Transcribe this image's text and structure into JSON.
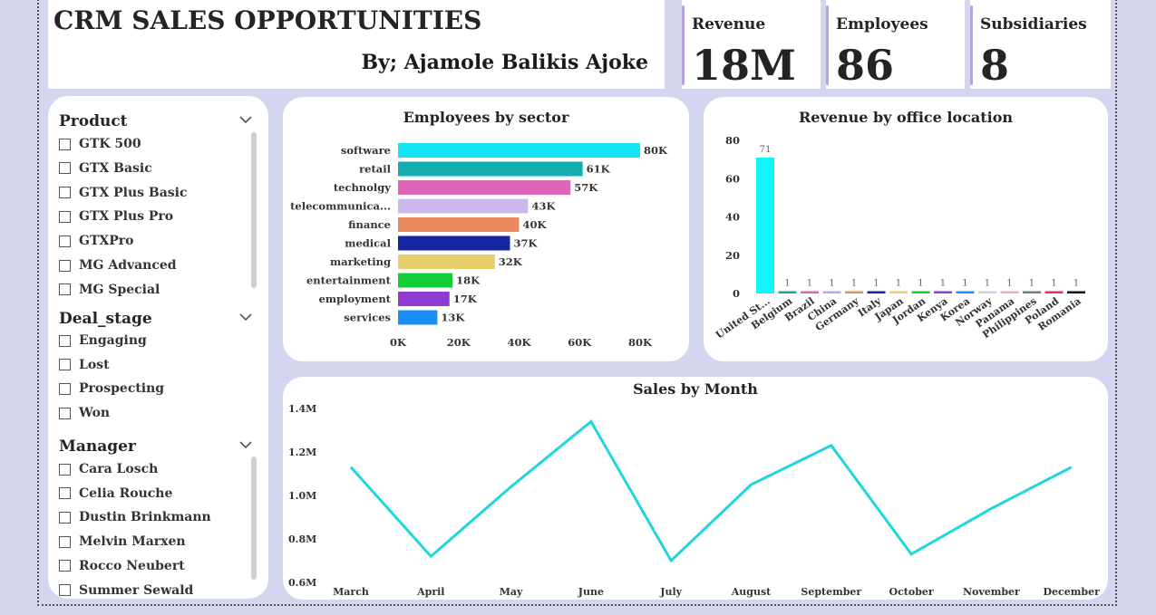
{
  "header": {
    "title": "CRM SALES OPPORTUNITIES",
    "author": "By; Ajamole Balikis Ajoke"
  },
  "kpis": [
    {
      "label": "Revenue",
      "value": "18M"
    },
    {
      "label": "Employees",
      "value": "86"
    },
    {
      "label": "Subsidiaries",
      "value": "8"
    }
  ],
  "slicers": {
    "product": {
      "title": "Product",
      "items": [
        "GTK 500",
        "GTX Basic",
        "GTX Plus Basic",
        "GTX Plus Pro",
        "GTXPro",
        "MG Advanced",
        "MG Special"
      ]
    },
    "deal_stage": {
      "title": "Deal_stage",
      "items": [
        "Engaging",
        "Lost",
        "Prospecting",
        "Won"
      ]
    },
    "manager": {
      "title": "Manager",
      "items": [
        "Cara Losch",
        "Celia Rouche",
        "Dustin Brinkmann",
        "Melvin Marxen",
        "Rocco Neubert",
        "Summer Sewald"
      ]
    }
  },
  "chart_data": [
    {
      "type": "bar",
      "orientation": "horizontal",
      "title": "Employees by sector",
      "categories": [
        "software",
        "retail",
        "technolgy",
        "telecommunica...",
        "finance",
        "medical",
        "marketing",
        "entertainment",
        "employment",
        "services"
      ],
      "values": [
        80,
        61,
        57,
        43,
        40,
        37,
        32,
        18,
        17,
        13
      ],
      "data_labels": [
        "80K",
        "61K",
        "57K",
        "43K",
        "40K",
        "37K",
        "32K",
        "18K",
        "17K",
        "13K"
      ],
      "colors": [
        "#12e6f2",
        "#11adaf",
        "#e064b7",
        "#cbb9ec",
        "#e98a5f",
        "#1427a1",
        "#e8cf69",
        "#14cc38",
        "#8f3ad1",
        "#1a8ef5"
      ],
      "xticks": [
        "0K",
        "20K",
        "40K",
        "60K",
        "80K"
      ],
      "xlim": [
        0,
        80
      ]
    },
    {
      "type": "bar",
      "title": "Revenue by office location",
      "categories": [
        "United St...",
        "Belgium",
        "Brazil",
        "China",
        "Germany",
        "Italy",
        "Japan",
        "Jordan",
        "Kenya",
        "Korea",
        "Norway",
        "Panama",
        "Philippines",
        "Poland",
        "Romania"
      ],
      "values": [
        71,
        1,
        1,
        1,
        1,
        1,
        1,
        1,
        1,
        1,
        1,
        1,
        1,
        1,
        1
      ],
      "data_labels": [
        "71",
        "1",
        "1",
        "1",
        "1",
        "1",
        "1",
        "1",
        "1",
        "1",
        "1",
        "1",
        "1",
        "1",
        "1"
      ],
      "colors": [
        "#12f4fa",
        "#1aa88e",
        "#e064b7",
        "#b9a6e6",
        "#e98a5f",
        "#1427a1",
        "#e8cf69",
        "#14cc38",
        "#8f3ad1",
        "#1a8ef5",
        "#c9d2e6",
        "#f0a8c8",
        "#7a7a7a",
        "#e8287a",
        "#111111"
      ],
      "yticks": [
        "0",
        "20",
        "40",
        "60",
        "80"
      ],
      "ylim": [
        0,
        80
      ]
    },
    {
      "type": "line",
      "title": "Sales by Month",
      "categories": [
        "March",
        "April",
        "May",
        "June",
        "July",
        "August",
        "September",
        "October",
        "November",
        "December"
      ],
      "values": [
        1.13,
        0.72,
        1.04,
        1.34,
        0.7,
        1.05,
        1.23,
        0.73,
        0.94,
        1.13
      ],
      "yticks": [
        "0.6M",
        "0.8M",
        "1.0M",
        "1.2M",
        "1.4M"
      ],
      "ylim": [
        0.6,
        1.4
      ],
      "color": "#1fd6dc"
    }
  ]
}
